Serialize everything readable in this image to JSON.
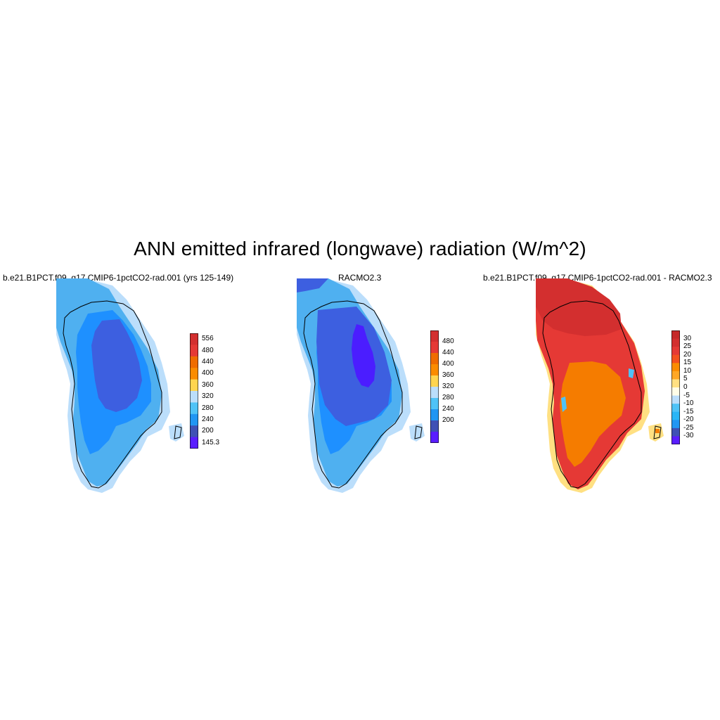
{
  "title": "ANN emitted infrared (longwave) radiation (W/m^2)",
  "panels": [
    {
      "id": "model",
      "title": "b.e21.B1PCT.f09_g17.CMIP6-1pctCO2-rad.001 (yrs 125-149)",
      "colorbar": {
        "labels": [
          "556",
          "480",
          "440",
          "400",
          "360",
          "320",
          "280",
          "240",
          "200",
          "145.3"
        ],
        "colors": [
          "#d32f2f",
          "#e53935",
          "#ef6c00",
          "#fb8c00",
          "#ffd54f",
          "#bbdefb",
          "#4fc3f7",
          "#2196f3",
          "#3f51b5",
          "#5a1dff"
        ]
      },
      "fill_colors": {
        "margin_light": "#bbdefb",
        "margin": "#4fb0f0",
        "main": "#1e90ff",
        "interior": "#3d5fe0"
      }
    },
    {
      "id": "obs",
      "title": "RACMO2.3",
      "colorbar": {
        "labels": [
          "480",
          "440",
          "400",
          "360",
          "320",
          "280",
          "240",
          "200"
        ],
        "colors": [
          "#d32f2f",
          "#e53935",
          "#ef6c00",
          "#fb8c00",
          "#ffd54f",
          "#bbdefb",
          "#4fc3f7",
          "#2196f3",
          "#3f51b5",
          "#5a1dff"
        ]
      },
      "fill_colors": {
        "margin_light": "#bbdefb",
        "margin": "#4fb0f0",
        "main": "#1e90ff",
        "interior": "#3d5fe0",
        "core": "#4b1dff"
      }
    },
    {
      "id": "diff",
      "title": "b.e21.B1PCT.f09_g17.CMIP6-1pctCO2-rad.001 - RACMO2.3",
      "colorbar": {
        "labels": [
          "30",
          "25",
          "20",
          "15",
          "10",
          "5",
          "0",
          "-5",
          "-10",
          "-15",
          "-20",
          "-25",
          "-30"
        ],
        "colors": [
          "#c62828",
          "#d32f2f",
          "#e53935",
          "#f4511e",
          "#fb8c00",
          "#ffa726",
          "#ffe082",
          "#fffde7",
          "#bbdefb",
          "#4fc3f7",
          "#29b6f6",
          "#2196f3",
          "#3f51b5",
          "#5a1dff"
        ]
      },
      "fill_colors": {
        "north": "#d32f2f",
        "mid": "#e53935",
        "south": "#f57c00",
        "edge_light": "#ffe082",
        "edge_blue": "#4fc3f7"
      }
    }
  ]
}
